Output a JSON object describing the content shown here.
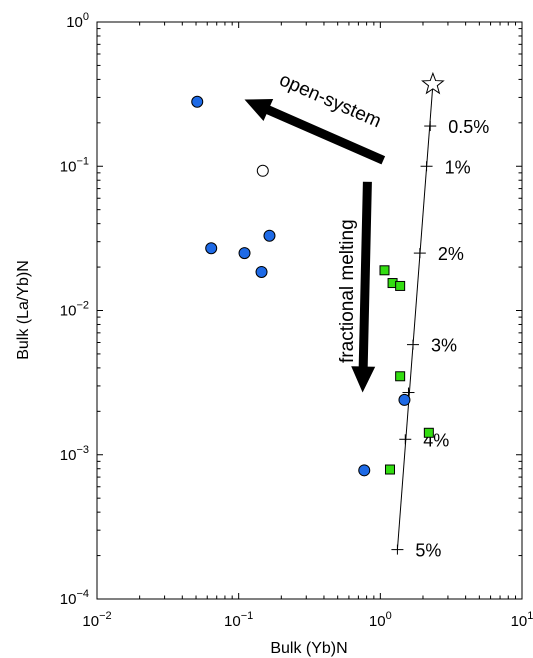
{
  "chart_data": {
    "type": "scatter",
    "title": "",
    "xlabel": "Bulk (Yb)N",
    "ylabel": "Bulk (La/Yb)N",
    "x_scale": "log",
    "y_scale": "log",
    "xlim": [
      0.01,
      10
    ],
    "ylim": [
      0.0001,
      1
    ],
    "grid": false,
    "x_ticks": [
      {
        "value": 0.01,
        "base": "10",
        "exp": "−2"
      },
      {
        "value": 0.1,
        "base": "10",
        "exp": "−1"
      },
      {
        "value": 1,
        "base": "10",
        "exp": "0"
      },
      {
        "value": 10,
        "base": "10",
        "exp": "1"
      }
    ],
    "y_ticks": [
      {
        "value": 0.0001,
        "base": "10",
        "exp": "−4"
      },
      {
        "value": 0.001,
        "base": "10",
        "exp": "−3"
      },
      {
        "value": 0.01,
        "base": "10",
        "exp": "−2"
      },
      {
        "value": 0.1,
        "base": "10",
        "exp": "−1"
      },
      {
        "value": 1,
        "base": "10",
        "exp": "0"
      }
    ],
    "series": [
      {
        "marker": "circle",
        "color": "#1e6ae6",
        "points": [
          {
            "x": 0.051,
            "y": 0.28
          },
          {
            "x": 0.064,
            "y": 0.027
          },
          {
            "x": 0.11,
            "y": 0.025
          },
          {
            "x": 0.145,
            "y": 0.0185
          },
          {
            "x": 0.165,
            "y": 0.033
          },
          {
            "x": 1.48,
            "y": 0.0024
          },
          {
            "x": 0.77,
            "y": 0.00078
          }
        ]
      },
      {
        "marker": "open-circle",
        "color": "#ffffff",
        "points": [
          {
            "x": 0.148,
            "y": 0.093
          }
        ]
      },
      {
        "marker": "square",
        "color": "#33dd11",
        "points": [
          {
            "x": 1.07,
            "y": 0.019
          },
          {
            "x": 1.22,
            "y": 0.0155
          },
          {
            "x": 1.38,
            "y": 0.0148
          },
          {
            "x": 1.38,
            "y": 0.0035
          },
          {
            "x": 2.2,
            "y": 0.00142
          },
          {
            "x": 1.17,
            "y": 0.00079
          }
        ]
      }
    ],
    "melting_curve": {
      "start": {
        "x": 2.35,
        "y": 0.37,
        "marker": "star"
      },
      "end": {
        "x": 1.32,
        "y": 0.00022
      },
      "ticks": [
        {
          "label": "0.5%",
          "x": 2.25,
          "y": 0.19
        },
        {
          "label": "1%",
          "x": 2.12,
          "y": 0.1
        },
        {
          "label": "2%",
          "x": 1.9,
          "y": 0.025
        },
        {
          "label": "3%",
          "x": 1.7,
          "y": 0.0058
        },
        {
          "label": "",
          "x": 1.58,
          "y": 0.0027
        },
        {
          "label": "4%",
          "x": 1.5,
          "y": 0.00128
        },
        {
          "label": "5%",
          "x": 1.32,
          "y": 0.00022
        }
      ]
    },
    "annotations": [
      {
        "text": "open-system",
        "arrow_from": {
          "x": 1.05,
          "y": 0.11
        },
        "arrow_to": {
          "x": 0.11,
          "y": 0.29
        }
      },
      {
        "text": "fractional melting",
        "arrow_from": {
          "x": 0.81,
          "y": 0.078
        },
        "arrow_to": {
          "x": 0.75,
          "y": 0.0027
        }
      }
    ]
  }
}
